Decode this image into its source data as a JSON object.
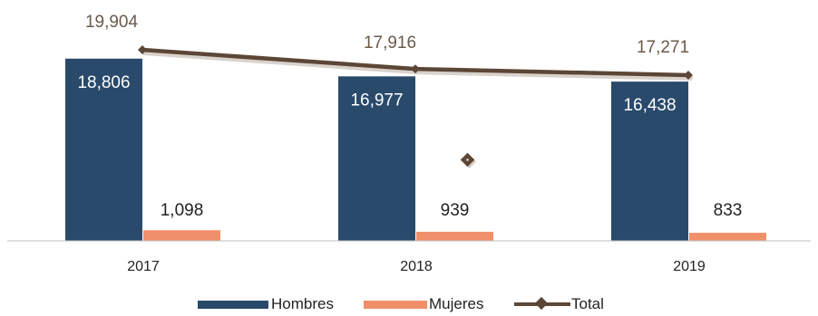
{
  "chart_data": {
    "type": "bar",
    "categories": [
      "2017",
      "2018",
      "2019"
    ],
    "series": [
      {
        "name": "Hombres",
        "kind": "bar",
        "color": "#2a4a6b",
        "values": [
          18806,
          16977,
          16438
        ],
        "labels": [
          "18,806",
          "16,977",
          "16,438"
        ]
      },
      {
        "name": "Mujeres",
        "kind": "bar",
        "color": "#f0906a",
        "values": [
          1098,
          939,
          833
        ],
        "labels": [
          "1,098",
          "939",
          "833"
        ]
      },
      {
        "name": "Total",
        "kind": "line",
        "color": "#5c4636",
        "values": [
          19904,
          17916,
          17271
        ],
        "labels": [
          "19,904",
          "17,916",
          "17,271"
        ]
      }
    ],
    "legend": {
      "position": "bottom",
      "items": [
        "Hombres",
        "Mujeres",
        "Total"
      ]
    },
    "grid": false
  }
}
